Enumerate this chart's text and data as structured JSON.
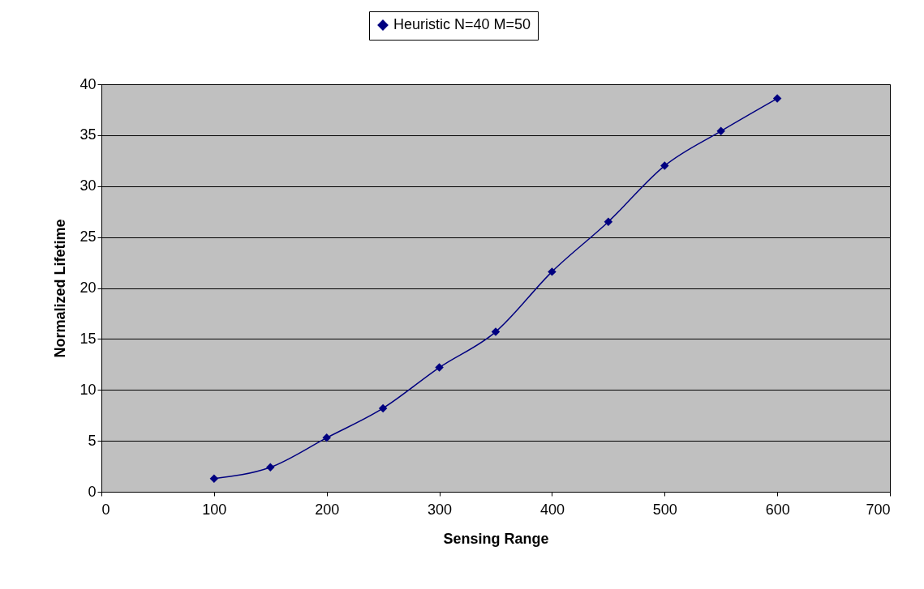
{
  "chart_data": {
    "type": "line",
    "xlabel": "Sensing Range",
    "ylabel": "Normalized Lifetime",
    "x": [
      100,
      150,
      200,
      250,
      300,
      350,
      400,
      450,
      500,
      550,
      600
    ],
    "series": [
      {
        "name": "Heuristic N=40 M=50",
        "color": "#000080",
        "values": [
          1.3,
          2.4,
          5.3,
          8.2,
          12.2,
          15.7,
          21.6,
          26.5,
          32.0,
          35.4,
          38.6
        ]
      }
    ],
    "xlim": [
      0,
      700
    ],
    "xticks": [
      0,
      100,
      200,
      300,
      400,
      500,
      600,
      700
    ],
    "ylim": [
      0,
      40
    ],
    "yticks": [
      0,
      5,
      10,
      15,
      20,
      25,
      30,
      35,
      40
    ],
    "grid": "y",
    "legend": "top",
    "marker": "diamond",
    "line_style": "solid"
  }
}
